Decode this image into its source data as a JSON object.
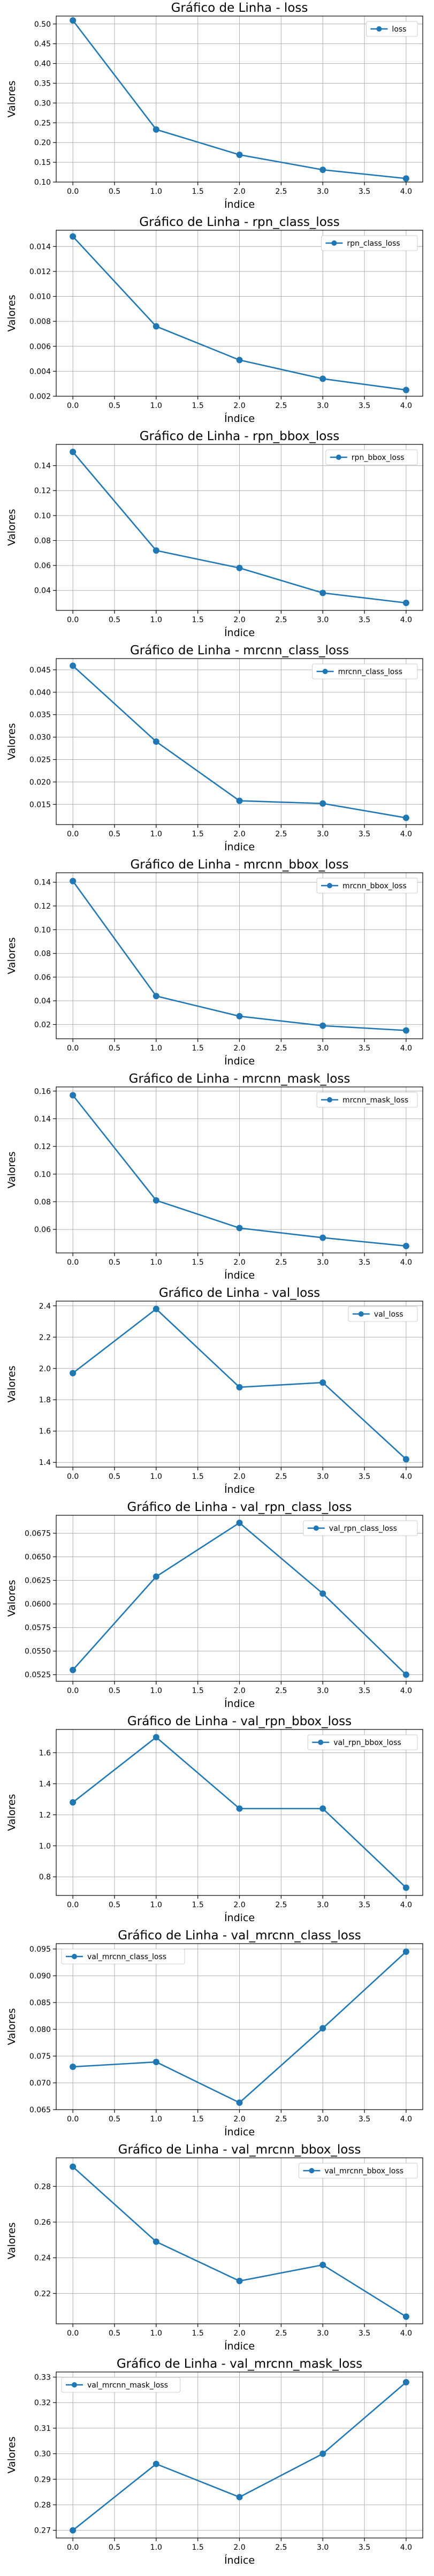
{
  "colors": {
    "series": "#1f77b4"
  },
  "chart_data": [
    {
      "type": "line",
      "title": "Gráfico de Linha - loss",
      "xlabel": "Índice",
      "ylabel": "Valores",
      "x": [
        0,
        1,
        2,
        3,
        4
      ],
      "xticks": [
        "0.0",
        "0.5",
        "1.0",
        "1.5",
        "2.0",
        "2.5",
        "3.0",
        "3.5",
        "4.0"
      ],
      "yticks": [
        "0.10",
        "0.15",
        "0.20",
        "0.25",
        "0.30",
        "0.35",
        "0.40",
        "0.45",
        "0.50"
      ],
      "ylim": [
        0.1,
        0.52
      ],
      "series": [
        {
          "name": "loss",
          "values": [
            0.509,
            0.233,
            0.169,
            0.131,
            0.109
          ]
        }
      ],
      "legend": "upper right",
      "grid": true
    },
    {
      "type": "line",
      "title": "Gráfico de Linha - rpn_class_loss",
      "xlabel": "Índice",
      "ylabel": "Valores",
      "x": [
        0,
        1,
        2,
        3,
        4
      ],
      "xticks": [
        "0.0",
        "0.5",
        "1.0",
        "1.5",
        "2.0",
        "2.5",
        "3.0",
        "3.5",
        "4.0"
      ],
      "yticks": [
        "0.002",
        "0.004",
        "0.006",
        "0.008",
        "0.010",
        "0.012",
        "0.014"
      ],
      "ylim": [
        0.002,
        0.0153
      ],
      "series": [
        {
          "name": "rpn_class_loss",
          "values": [
            0.0148,
            0.0076,
            0.0049,
            0.0034,
            0.0025
          ]
        }
      ],
      "legend": "upper right",
      "grid": true
    },
    {
      "type": "line",
      "title": "Gráfico de Linha - rpn_bbox_loss",
      "xlabel": "Índice",
      "ylabel": "Valores",
      "x": [
        0,
        1,
        2,
        3,
        4
      ],
      "xticks": [
        "0.0",
        "0.5",
        "1.0",
        "1.5",
        "2.0",
        "2.5",
        "3.0",
        "3.5",
        "4.0"
      ],
      "yticks": [
        "0.04",
        "0.06",
        "0.08",
        "0.10",
        "0.12",
        "0.14"
      ],
      "ylim": [
        0.024,
        0.157
      ],
      "series": [
        {
          "name": "rpn_bbox_loss",
          "values": [
            0.151,
            0.072,
            0.058,
            0.038,
            0.03
          ]
        }
      ],
      "legend": "upper right",
      "grid": true
    },
    {
      "type": "line",
      "title": "Gráfico de Linha - mrcnn_class_loss",
      "xlabel": "Índice",
      "ylabel": "Valores",
      "x": [
        0,
        1,
        2,
        3,
        4
      ],
      "xticks": [
        "0.0",
        "0.5",
        "1.0",
        "1.5",
        "2.0",
        "2.5",
        "3.0",
        "3.5",
        "4.0"
      ],
      "yticks": [
        "0.015",
        "0.020",
        "0.025",
        "0.030",
        "0.035",
        "0.040",
        "0.045"
      ],
      "ylim": [
        0.0105,
        0.0475
      ],
      "series": [
        {
          "name": "mrcnn_class_loss",
          "values": [
            0.0459,
            0.029,
            0.0158,
            0.0152,
            0.012
          ]
        }
      ],
      "legend": "upper right",
      "grid": true
    },
    {
      "type": "line",
      "title": "Gráfico de Linha - mrcnn_bbox_loss",
      "xlabel": "Índice",
      "ylabel": "Valores",
      "x": [
        0,
        1,
        2,
        3,
        4
      ],
      "xticks": [
        "0.0",
        "0.5",
        "1.0",
        "1.5",
        "2.0",
        "2.5",
        "3.0",
        "3.5",
        "4.0"
      ],
      "yticks": [
        "0.02",
        "0.04",
        "0.06",
        "0.08",
        "0.10",
        "0.12",
        "0.14"
      ],
      "ylim": [
        0.008,
        0.148
      ],
      "series": [
        {
          "name": "mrcnn_bbox_loss",
          "values": [
            0.141,
            0.044,
            0.027,
            0.019,
            0.015
          ]
        }
      ],
      "legend": "upper right",
      "grid": true
    },
    {
      "type": "line",
      "title": "Gráfico de Linha - mrcnn_mask_loss",
      "xlabel": "Índice",
      "ylabel": "Valores",
      "x": [
        0,
        1,
        2,
        3,
        4
      ],
      "xticks": [
        "0.0",
        "0.5",
        "1.0",
        "1.5",
        "2.0",
        "2.5",
        "3.0",
        "3.5",
        "4.0"
      ],
      "yticks": [
        "0.06",
        "0.08",
        "0.10",
        "0.12",
        "0.14",
        "0.16"
      ],
      "ylim": [
        0.043,
        0.163
      ],
      "series": [
        {
          "name": "mrcnn_mask_loss",
          "values": [
            0.157,
            0.081,
            0.061,
            0.054,
            0.048
          ]
        }
      ],
      "legend": "upper right",
      "grid": true
    },
    {
      "type": "line",
      "title": "Gráfico de Linha - val_loss",
      "xlabel": "Índice",
      "ylabel": "Valores",
      "x": [
        0,
        1,
        2,
        3,
        4
      ],
      "xticks": [
        "0.0",
        "0.5",
        "1.0",
        "1.5",
        "2.0",
        "2.5",
        "3.0",
        "3.5",
        "4.0"
      ],
      "yticks": [
        "1.4",
        "1.6",
        "1.8",
        "2.0",
        "2.2",
        "2.4"
      ],
      "ylim": [
        1.37,
        2.43
      ],
      "series": [
        {
          "name": "val_loss",
          "values": [
            1.97,
            2.38,
            1.88,
            1.91,
            1.42
          ]
        }
      ],
      "legend": "upper right",
      "grid": true
    },
    {
      "type": "line",
      "title": "Gráfico de Linha - val_rpn_class_loss",
      "xlabel": "Índice",
      "ylabel": "Valores",
      "x": [
        0,
        1,
        2,
        3,
        4
      ],
      "xticks": [
        "0.0",
        "0.5",
        "1.0",
        "1.5",
        "2.0",
        "2.5",
        "3.0",
        "3.5",
        "4.0"
      ],
      "yticks": [
        "0.0525",
        "0.0550",
        "0.0575",
        "0.0600",
        "0.0625",
        "0.0650",
        "0.0675"
      ],
      "ylim": [
        0.0518,
        0.0694
      ],
      "series": [
        {
          "name": "val_rpn_class_loss",
          "values": [
            0.053,
            0.0629,
            0.0686,
            0.0611,
            0.0525
          ]
        }
      ],
      "legend": "upper right",
      "grid": true
    },
    {
      "type": "line",
      "title": "Gráfico de Linha - val_rpn_bbox_loss",
      "xlabel": "Índice",
      "ylabel": "Valores",
      "x": [
        0,
        1,
        2,
        3,
        4
      ],
      "xticks": [
        "0.0",
        "0.5",
        "1.0",
        "1.5",
        "2.0",
        "2.5",
        "3.0",
        "3.5",
        "4.0"
      ],
      "yticks": [
        "0.8",
        "1.0",
        "1.2",
        "1.4",
        "1.6"
      ],
      "ylim": [
        0.68,
        1.75
      ],
      "series": [
        {
          "name": "val_rpn_bbox_loss",
          "values": [
            1.28,
            1.7,
            1.24,
            1.24,
            0.73
          ]
        }
      ],
      "legend": "upper right",
      "grid": true
    },
    {
      "type": "line",
      "title": "Gráfico de Linha - val_mrcnn_class_loss",
      "xlabel": "Índice",
      "ylabel": "Valores",
      "x": [
        0,
        1,
        2,
        3,
        4
      ],
      "xticks": [
        "0.0",
        "0.5",
        "1.0",
        "1.5",
        "2.0",
        "2.5",
        "3.0",
        "3.5",
        "4.0"
      ],
      "yticks": [
        "0.065",
        "0.070",
        "0.075",
        "0.080",
        "0.085",
        "0.090",
        "0.095"
      ],
      "ylim": [
        0.065,
        0.096
      ],
      "series": [
        {
          "name": "val_mrcnn_class_loss",
          "values": [
            0.073,
            0.0739,
            0.0663,
            0.0802,
            0.0945
          ]
        }
      ],
      "legend": "upper left",
      "grid": true
    },
    {
      "type": "line",
      "title": "Gráfico de Linha - val_mrcnn_bbox_loss",
      "xlabel": "Índice",
      "ylabel": "Valores",
      "x": [
        0,
        1,
        2,
        3,
        4
      ],
      "xticks": [
        "0.0",
        "0.5",
        "1.0",
        "1.5",
        "2.0",
        "2.5",
        "3.0",
        "3.5",
        "4.0"
      ],
      "yticks": [
        "0.22",
        "0.24",
        "0.26",
        "0.28"
      ],
      "ylim": [
        0.203,
        0.296
      ],
      "series": [
        {
          "name": "val_mrcnn_bbox_loss",
          "values": [
            0.291,
            0.249,
            0.227,
            0.236,
            0.207
          ]
        }
      ],
      "legend": "upper right",
      "grid": true
    },
    {
      "type": "line",
      "title": "Gráfico de Linha - val_mrcnn_mask_loss",
      "xlabel": "Índice",
      "ylabel": "Valores",
      "x": [
        0,
        1,
        2,
        3,
        4
      ],
      "xticks": [
        "0.0",
        "0.5",
        "1.0",
        "1.5",
        "2.0",
        "2.5",
        "3.0",
        "3.5",
        "4.0"
      ],
      "yticks": [
        "0.27",
        "0.28",
        "0.29",
        "0.30",
        "0.31",
        "0.32",
        "0.33"
      ],
      "ylim": [
        0.267,
        0.332
      ],
      "series": [
        {
          "name": "val_mrcnn_mask_loss",
          "values": [
            0.27,
            0.296,
            0.283,
            0.3,
            0.328
          ]
        }
      ],
      "legend": "upper left",
      "grid": true
    }
  ]
}
